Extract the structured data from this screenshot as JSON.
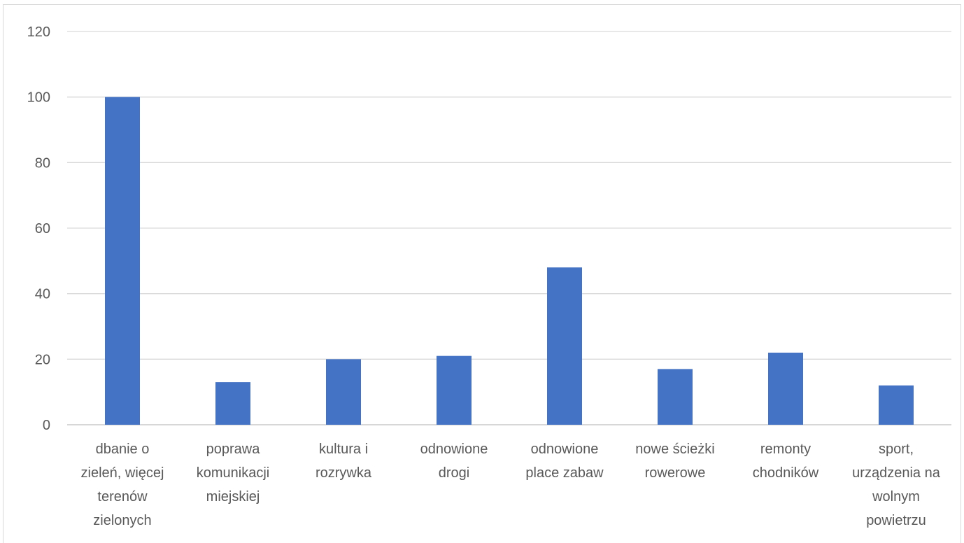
{
  "chart_data": {
    "type": "bar",
    "title": "",
    "xlabel": "",
    "ylabel": "",
    "ylim": [
      0,
      120
    ],
    "yticks": [
      0,
      20,
      40,
      60,
      80,
      100,
      120
    ],
    "grid": true,
    "legend": "none",
    "bar_color": "#4472C4",
    "categories": [
      [
        "dbanie o",
        "zieleń, więcej",
        "terenów",
        "zielonych"
      ],
      [
        "poprawa",
        "komunikacji",
        "miejskiej"
      ],
      [
        "kultura i",
        "rozrywka"
      ],
      [
        "odnowione",
        "drogi"
      ],
      [
        "odnowione",
        "place zabaw"
      ],
      [
        "nowe ścieżki",
        "rowerowe"
      ],
      [
        "remonty",
        "chodników"
      ],
      [
        "sport,",
        "urządzenia na",
        "wolnym",
        "powietrzu"
      ]
    ],
    "values": [
      100,
      13,
      20,
      21,
      48,
      17,
      22,
      12
    ]
  }
}
